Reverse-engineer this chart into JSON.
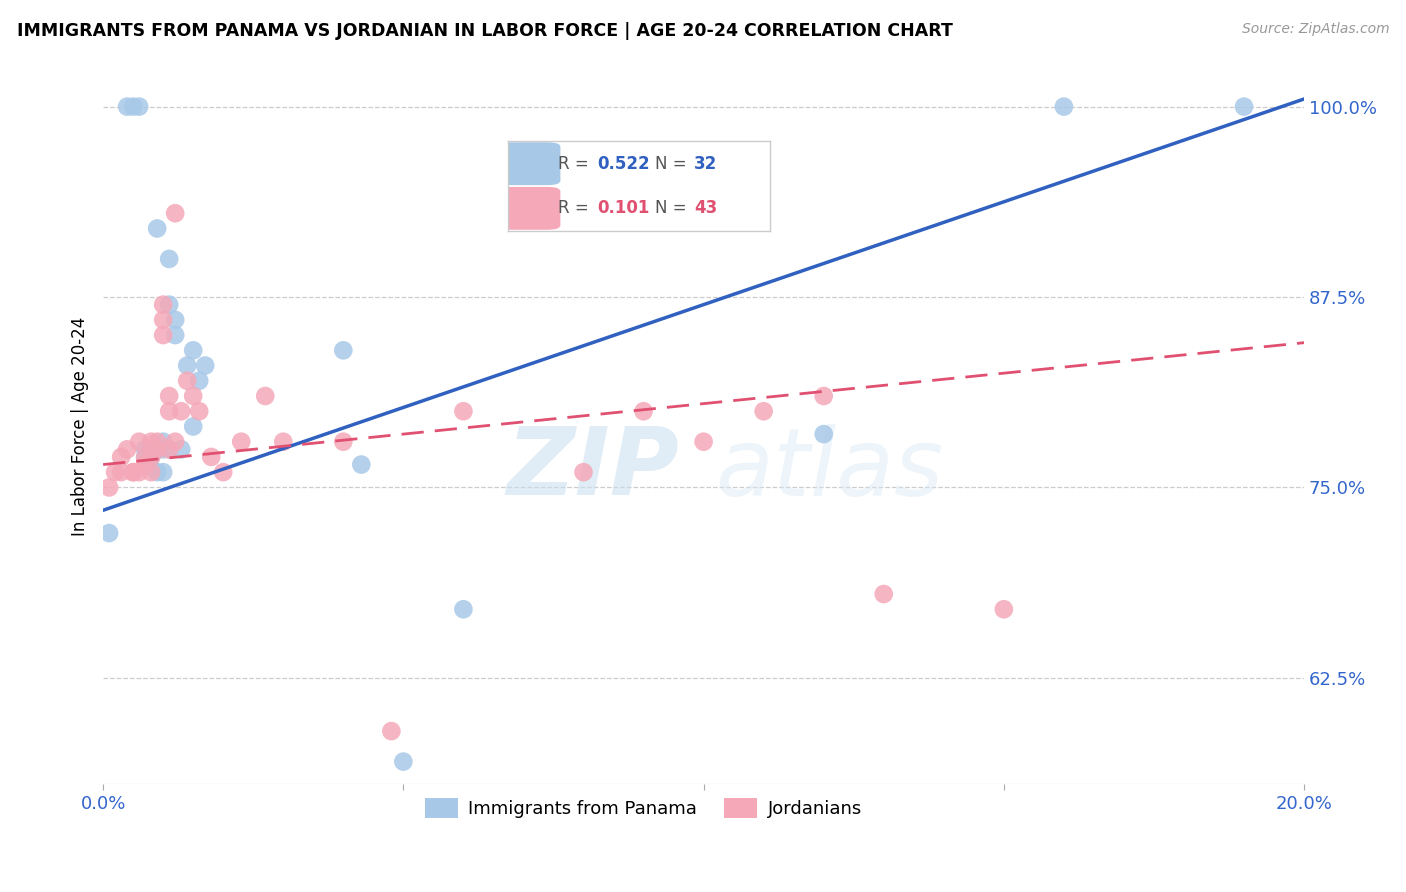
{
  "title": "IMMIGRANTS FROM PANAMA VS JORDANIAN IN LABOR FORCE | AGE 20-24 CORRELATION CHART",
  "source": "Source: ZipAtlas.com",
  "ylabel": "In Labor Force | Age 20-24",
  "xlim": [
    0.0,
    0.2
  ],
  "ylim": [
    0.555,
    1.025
  ],
  "yticks": [
    0.625,
    0.75,
    0.875,
    1.0
  ],
  "ytick_labels": [
    "62.5%",
    "75.0%",
    "87.5%",
    "100.0%"
  ],
  "xticks": [
    0.0,
    0.05,
    0.1,
    0.15,
    0.2
  ],
  "xtick_labels": [
    "0.0%",
    "",
    "",
    "",
    "20.0%"
  ],
  "panama_R": 0.522,
  "panama_N": 32,
  "jordan_R": 0.101,
  "jordan_N": 43,
  "panama_color": "#a8c8e8",
  "jordan_color": "#f4a8b8",
  "panama_line_color": "#3060c0",
  "jordan_line_color": "#e05070",
  "legend_panama_label": "Immigrants from Panama",
  "legend_jordan_label": "Jordanians",
  "watermark_zip": "ZIP",
  "watermark_atlas": "atlas",
  "panama_scatter_x": [
    0.001,
    0.004,
    0.005,
    0.006,
    0.007,
    0.007,
    0.008,
    0.008,
    0.009,
    0.009,
    0.009,
    0.01,
    0.01,
    0.01,
    0.011,
    0.011,
    0.011,
    0.012,
    0.012,
    0.013,
    0.014,
    0.015,
    0.015,
    0.016,
    0.017,
    0.04,
    0.043,
    0.05,
    0.06,
    0.12,
    0.16,
    0.19
  ],
  "panama_scatter_y": [
    0.72,
    1.0,
    1.0,
    1.0,
    0.77,
    0.775,
    0.775,
    0.77,
    0.775,
    0.76,
    0.92,
    0.775,
    0.78,
    0.76,
    0.9,
    0.87,
    0.775,
    0.86,
    0.85,
    0.775,
    0.83,
    0.84,
    0.79,
    0.82,
    0.83,
    0.84,
    0.765,
    0.57,
    0.67,
    0.785,
    1.0,
    1.0
  ],
  "jordan_scatter_x": [
    0.001,
    0.002,
    0.003,
    0.003,
    0.004,
    0.005,
    0.005,
    0.006,
    0.006,
    0.007,
    0.007,
    0.008,
    0.008,
    0.008,
    0.009,
    0.009,
    0.01,
    0.01,
    0.01,
    0.011,
    0.011,
    0.011,
    0.012,
    0.012,
    0.013,
    0.014,
    0.015,
    0.016,
    0.018,
    0.02,
    0.023,
    0.027,
    0.03,
    0.04,
    0.048,
    0.06,
    0.08,
    0.09,
    0.1,
    0.11,
    0.12,
    0.13,
    0.15
  ],
  "jordan_scatter_y": [
    0.75,
    0.76,
    0.77,
    0.76,
    0.775,
    0.76,
    0.76,
    0.78,
    0.76,
    0.77,
    0.765,
    0.78,
    0.77,
    0.76,
    0.78,
    0.775,
    0.86,
    0.85,
    0.87,
    0.81,
    0.8,
    0.775,
    0.93,
    0.78,
    0.8,
    0.82,
    0.81,
    0.8,
    0.77,
    0.76,
    0.78,
    0.81,
    0.78,
    0.78,
    0.59,
    0.8,
    0.76,
    0.8,
    0.78,
    0.8,
    0.81,
    0.68,
    0.67
  ],
  "panama_line_x": [
    0.0,
    0.2
  ],
  "panama_line_y": [
    0.735,
    1.005
  ],
  "jordan_line_x": [
    0.0,
    0.2
  ],
  "jordan_line_y": [
    0.765,
    0.845
  ]
}
